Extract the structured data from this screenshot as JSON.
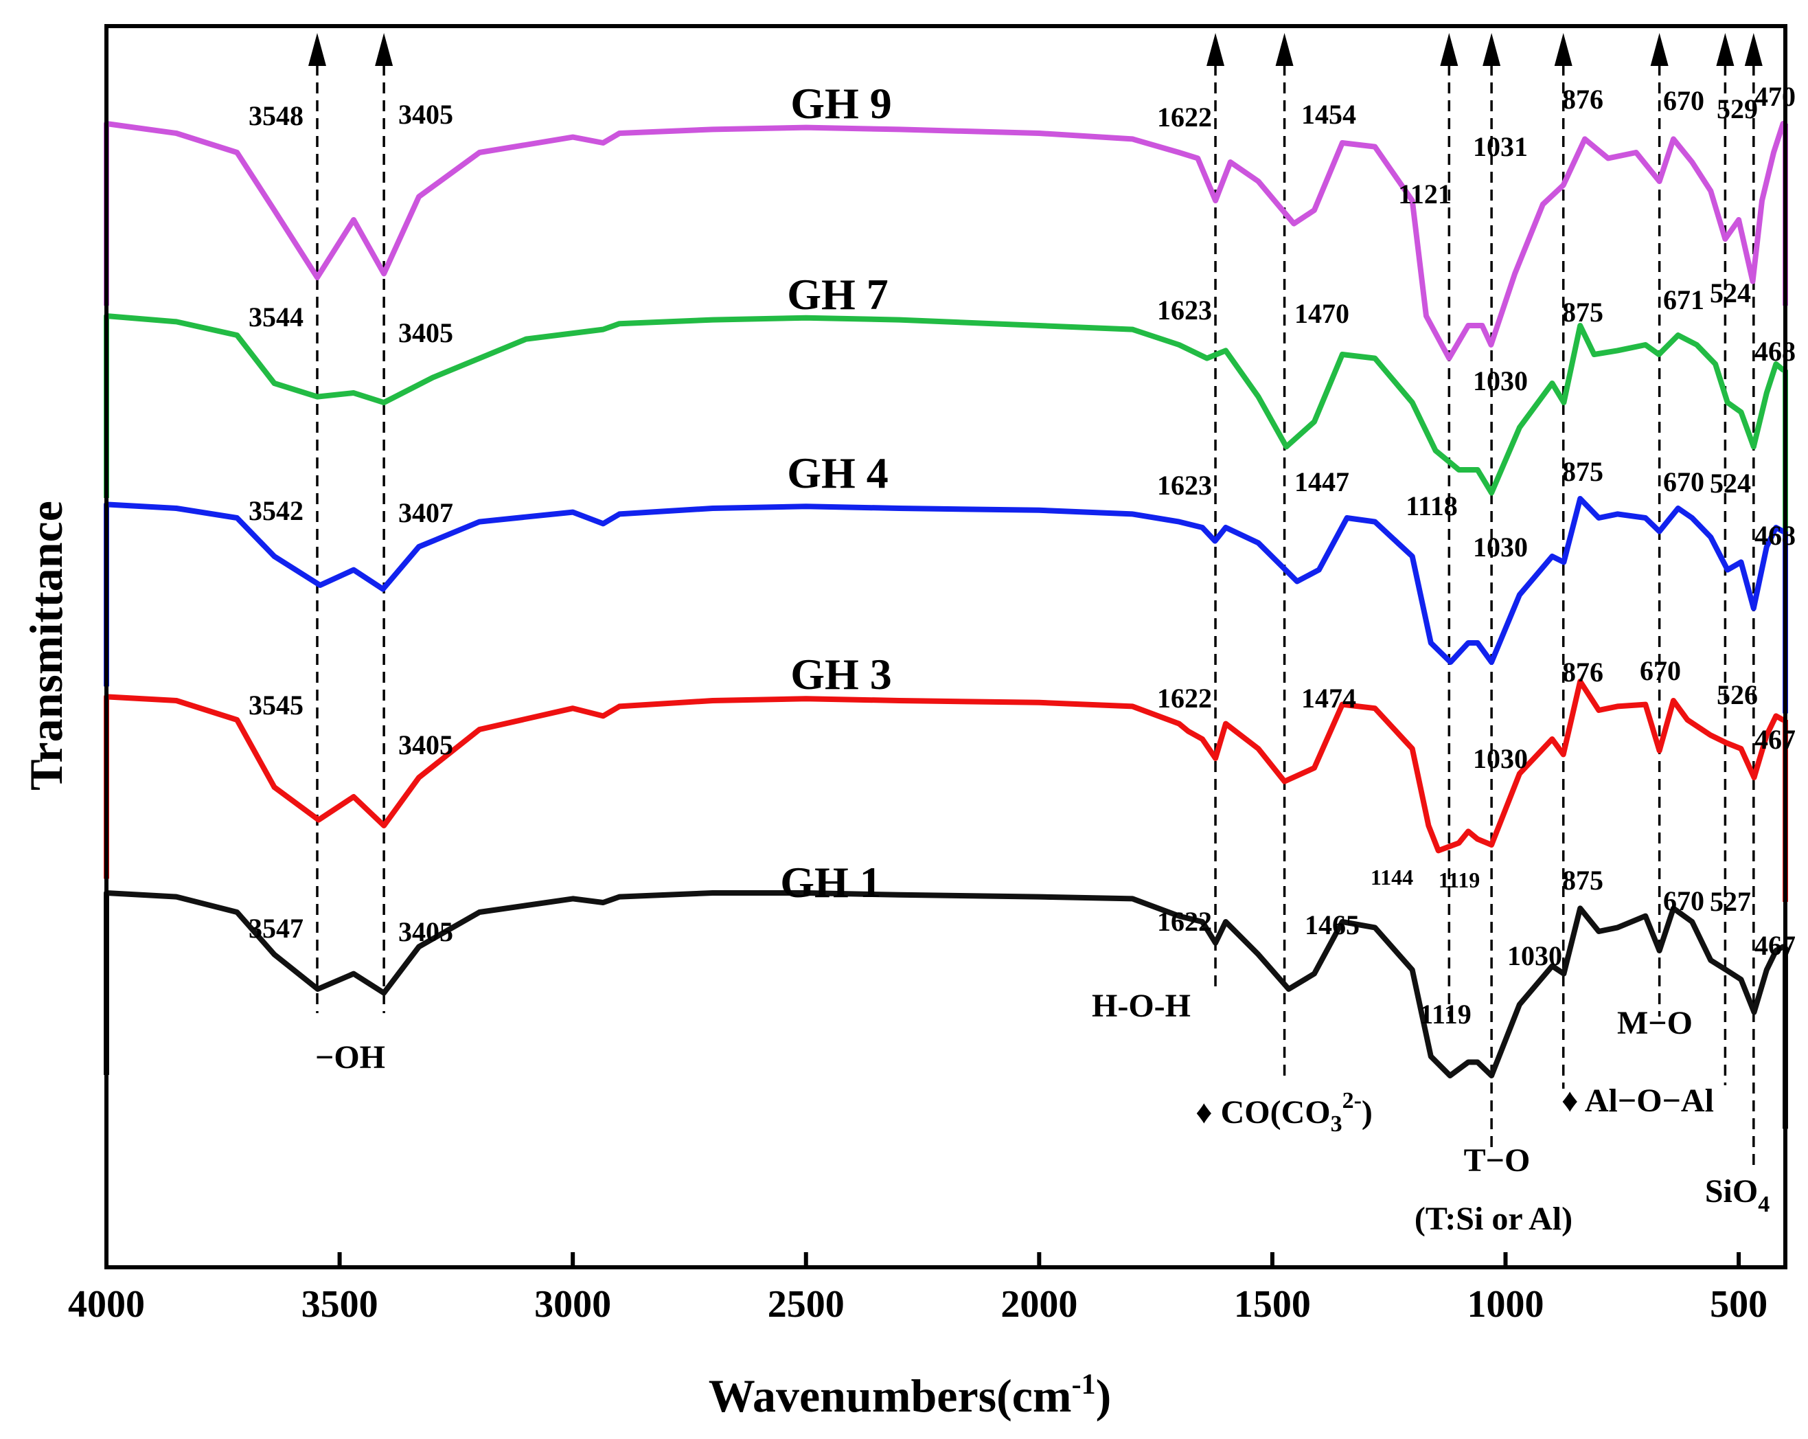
{
  "chart_data": {
    "type": "line",
    "title": "",
    "xlabel": "Wavenumbers(cm",
    "xlabel_superscript": "-1",
    "xlabel_close": ")",
    "ylabel": "Transmittance",
    "xlim": [
      4000,
      400
    ],
    "x_ticks": [
      4000,
      3500,
      3000,
      2500,
      2000,
      1500,
      1000,
      500
    ],
    "y_ticks": [],
    "grid": false,
    "legend": "none",
    "series": [
      {
        "name": "GH 9",
        "color": "#cc55dd",
        "baseline": 4.9,
        "points": [
          [
            4000,
            5.0
          ],
          [
            3850,
            4.95
          ],
          [
            3720,
            4.85
          ],
          [
            3640,
            4.55
          ],
          [
            3548,
            4.2
          ],
          [
            3470,
            4.5
          ],
          [
            3405,
            4.22
          ],
          [
            3330,
            4.62
          ],
          [
            3200,
            4.85
          ],
          [
            3000,
            4.93
          ],
          [
            2935,
            4.9
          ],
          [
            2900,
            4.95
          ],
          [
            2700,
            4.97
          ],
          [
            2500,
            4.98
          ],
          [
            2300,
            4.97
          ],
          [
            2000,
            4.95
          ],
          [
            1800,
            4.92
          ],
          [
            1700,
            4.85
          ],
          [
            1660,
            4.82
          ],
          [
            1622,
            4.6
          ],
          [
            1590,
            4.8
          ],
          [
            1530,
            4.7
          ],
          [
            1454,
            4.48
          ],
          [
            1410,
            4.55
          ],
          [
            1350,
            4.9
          ],
          [
            1280,
            4.88
          ],
          [
            1200,
            4.6
          ],
          [
            1170,
            4.0
          ],
          [
            1121,
            3.78
          ],
          [
            1080,
            3.95
          ],
          [
            1050,
            3.95
          ],
          [
            1031,
            3.85
          ],
          [
            980,
            4.22
          ],
          [
            920,
            4.58
          ],
          [
            876,
            4.68
          ],
          [
            830,
            4.92
          ],
          [
            780,
            4.82
          ],
          [
            720,
            4.85
          ],
          [
            670,
            4.7
          ],
          [
            640,
            4.92
          ],
          [
            600,
            4.8
          ],
          [
            560,
            4.65
          ],
          [
            529,
            4.4
          ],
          [
            500,
            4.5
          ],
          [
            470,
            4.18
          ],
          [
            450,
            4.6
          ],
          [
            425,
            4.85
          ],
          [
            405,
            5.0
          ]
        ],
        "peak_labels": [
          "3548",
          "3405",
          "1622",
          "1454",
          "1121",
          "1031",
          "876",
          "670",
          "529",
          "470"
        ]
      },
      {
        "name": "GH 7",
        "color": "#22bb44",
        "baseline": 3.95,
        "points": [
          [
            4000,
            4.0
          ],
          [
            3850,
            3.97
          ],
          [
            3720,
            3.9
          ],
          [
            3640,
            3.65
          ],
          [
            3548,
            3.58
          ],
          [
            3470,
            3.6
          ],
          [
            3405,
            3.55
          ],
          [
            3300,
            3.68
          ],
          [
            3100,
            3.88
          ],
          [
            2935,
            3.93
          ],
          [
            2900,
            3.96
          ],
          [
            2700,
            3.98
          ],
          [
            2500,
            3.99
          ],
          [
            2300,
            3.98
          ],
          [
            2000,
            3.95
          ],
          [
            1800,
            3.93
          ],
          [
            1700,
            3.85
          ],
          [
            1640,
            3.78
          ],
          [
            1600,
            3.82
          ],
          [
            1530,
            3.58
          ],
          [
            1470,
            3.32
          ],
          [
            1410,
            3.45
          ],
          [
            1350,
            3.8
          ],
          [
            1280,
            3.78
          ],
          [
            1200,
            3.55
          ],
          [
            1150,
            3.3
          ],
          [
            1100,
            3.2
          ],
          [
            1060,
            3.2
          ],
          [
            1030,
            3.08
          ],
          [
            970,
            3.42
          ],
          [
            900,
            3.65
          ],
          [
            875,
            3.55
          ],
          [
            840,
            3.95
          ],
          [
            810,
            3.8
          ],
          [
            760,
            3.82
          ],
          [
            700,
            3.85
          ],
          [
            671,
            3.8
          ],
          [
            630,
            3.9
          ],
          [
            590,
            3.85
          ],
          [
            550,
            3.75
          ],
          [
            524,
            3.55
          ],
          [
            495,
            3.5
          ],
          [
            468,
            3.32
          ],
          [
            440,
            3.6
          ],
          [
            420,
            3.75
          ],
          [
            405,
            3.72
          ]
        ],
        "peak_labels": [
          "3544",
          "3405",
          "1623",
          "1470",
          "1030",
          "875",
          "671",
          "524",
          "468"
        ]
      },
      {
        "name": "GH 4",
        "color": "#1122ee",
        "baseline": 3.0,
        "points": [
          [
            4000,
            3.02
          ],
          [
            3850,
            3.0
          ],
          [
            3720,
            2.95
          ],
          [
            3640,
            2.75
          ],
          [
            3542,
            2.6
          ],
          [
            3470,
            2.68
          ],
          [
            3407,
            2.58
          ],
          [
            3330,
            2.8
          ],
          [
            3200,
            2.93
          ],
          [
            3000,
            2.98
          ],
          [
            2935,
            2.92
          ],
          [
            2900,
            2.97
          ],
          [
            2700,
            3.0
          ],
          [
            2500,
            3.01
          ],
          [
            2300,
            3.0
          ],
          [
            2000,
            2.99
          ],
          [
            1800,
            2.97
          ],
          [
            1700,
            2.93
          ],
          [
            1650,
            2.9
          ],
          [
            1623,
            2.83
          ],
          [
            1600,
            2.9
          ],
          [
            1530,
            2.82
          ],
          [
            1447,
            2.62
          ],
          [
            1400,
            2.68
          ],
          [
            1340,
            2.95
          ],
          [
            1280,
            2.93
          ],
          [
            1200,
            2.75
          ],
          [
            1160,
            2.3
          ],
          [
            1118,
            2.2
          ],
          [
            1080,
            2.3
          ],
          [
            1060,
            2.3
          ],
          [
            1030,
            2.2
          ],
          [
            970,
            2.55
          ],
          [
            900,
            2.75
          ],
          [
            875,
            2.72
          ],
          [
            840,
            3.05
          ],
          [
            800,
            2.95
          ],
          [
            760,
            2.97
          ],
          [
            700,
            2.95
          ],
          [
            670,
            2.88
          ],
          [
            630,
            3.0
          ],
          [
            600,
            2.95
          ],
          [
            560,
            2.85
          ],
          [
            524,
            2.68
          ],
          [
            495,
            2.72
          ],
          [
            468,
            2.48
          ],
          [
            440,
            2.8
          ],
          [
            420,
            2.9
          ],
          [
            405,
            2.88
          ]
        ],
        "peak_labels": [
          "3542",
          "3407",
          "1623",
          "1447",
          "1118",
          "1030",
          "875",
          "670",
          "524",
          "468"
        ]
      },
      {
        "name": "GH 3",
        "color": "#ee1111",
        "baseline": 2.0,
        "points": [
          [
            4000,
            2.02
          ],
          [
            3850,
            2.0
          ],
          [
            3720,
            1.9
          ],
          [
            3640,
            1.55
          ],
          [
            3545,
            1.38
          ],
          [
            3470,
            1.5
          ],
          [
            3405,
            1.35
          ],
          [
            3330,
            1.6
          ],
          [
            3200,
            1.85
          ],
          [
            3000,
            1.96
          ],
          [
            2935,
            1.92
          ],
          [
            2900,
            1.97
          ],
          [
            2700,
            2.0
          ],
          [
            2500,
            2.01
          ],
          [
            2300,
            2.0
          ],
          [
            2000,
            1.99
          ],
          [
            1800,
            1.97
          ],
          [
            1700,
            1.88
          ],
          [
            1680,
            1.84
          ],
          [
            1650,
            1.8
          ],
          [
            1622,
            1.7
          ],
          [
            1600,
            1.88
          ],
          [
            1530,
            1.75
          ],
          [
            1474,
            1.58
          ],
          [
            1410,
            1.65
          ],
          [
            1350,
            1.98
          ],
          [
            1280,
            1.96
          ],
          [
            1200,
            1.75
          ],
          [
            1165,
            1.35
          ],
          [
            1144,
            1.22
          ],
          [
            1100,
            1.26
          ],
          [
            1080,
            1.32
          ],
          [
            1060,
            1.28
          ],
          [
            1030,
            1.25
          ],
          [
            970,
            1.62
          ],
          [
            900,
            1.8
          ],
          [
            876,
            1.72
          ],
          [
            840,
            2.1
          ],
          [
            800,
            1.95
          ],
          [
            760,
            1.97
          ],
          [
            700,
            1.98
          ],
          [
            670,
            1.74
          ],
          [
            640,
            2.0
          ],
          [
            610,
            1.9
          ],
          [
            560,
            1.82
          ],
          [
            526,
            1.78
          ],
          [
            495,
            1.75
          ],
          [
            467,
            1.6
          ],
          [
            440,
            1.82
          ],
          [
            420,
            1.92
          ],
          [
            405,
            1.9
          ]
        ],
        "peak_labels": [
          "3545",
          "3405",
          "1622",
          "1474",
          "1144",
          "1119",
          "1030",
          "876",
          "670",
          "526",
          "467"
        ]
      },
      {
        "name": "GH 1",
        "color": "#111111",
        "baseline": 1.0,
        "points": [
          [
            4000,
            1.0
          ],
          [
            3850,
            0.98
          ],
          [
            3720,
            0.9
          ],
          [
            3640,
            0.68
          ],
          [
            3547,
            0.5
          ],
          [
            3470,
            0.58
          ],
          [
            3405,
            0.48
          ],
          [
            3330,
            0.72
          ],
          [
            3200,
            0.9
          ],
          [
            3000,
            0.97
          ],
          [
            2935,
            0.95
          ],
          [
            2900,
            0.98
          ],
          [
            2700,
            1.0
          ],
          [
            2500,
            1.0
          ],
          [
            2300,
            0.99
          ],
          [
            2000,
            0.98
          ],
          [
            1800,
            0.97
          ],
          [
            1700,
            0.88
          ],
          [
            1650,
            0.85
          ],
          [
            1622,
            0.74
          ],
          [
            1600,
            0.85
          ],
          [
            1530,
            0.68
          ],
          [
            1465,
            0.5
          ],
          [
            1410,
            0.58
          ],
          [
            1350,
            0.85
          ],
          [
            1280,
            0.82
          ],
          [
            1200,
            0.6
          ],
          [
            1160,
            0.15
          ],
          [
            1119,
            0.05
          ],
          [
            1080,
            0.12
          ],
          [
            1060,
            0.12
          ],
          [
            1030,
            0.05
          ],
          [
            970,
            0.42
          ],
          [
            900,
            0.62
          ],
          [
            875,
            0.58
          ],
          [
            840,
            0.92
          ],
          [
            800,
            0.8
          ],
          [
            760,
            0.82
          ],
          [
            700,
            0.88
          ],
          [
            670,
            0.7
          ],
          [
            640,
            0.92
          ],
          [
            600,
            0.85
          ],
          [
            560,
            0.65
          ],
          [
            527,
            0.6
          ],
          [
            495,
            0.55
          ],
          [
            467,
            0.38
          ],
          [
            440,
            0.6
          ],
          [
            420,
            0.7
          ],
          [
            405,
            0.72
          ]
        ],
        "peak_labels": [
          "3547",
          "3405",
          "1622",
          "1465",
          "1119",
          "1030",
          "875",
          "670",
          "527",
          "467"
        ]
      }
    ],
    "guide_lines": [
      3548,
      3405,
      1622,
      1474,
      1121,
      1030,
      876,
      670,
      529,
      468
    ],
    "band_labels": {
      "oh": "−OH",
      "hoh": "H-O-H",
      "co_prefix": "♦ CO(CO",
      "co_sub": "3",
      "co_sup": "2-",
      "co_close": ")",
      "to": "T−O",
      "to_note": "(T:Si or Al)",
      "aloal": "♦ Al−O−Al",
      "mo": "M−O",
      "sio4": "SiO",
      "sio4_sub": "4"
    }
  }
}
